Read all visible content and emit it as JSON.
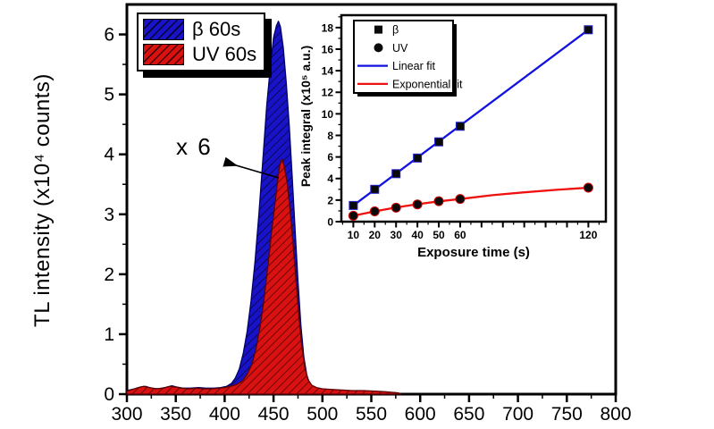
{
  "window": {
    "background": "#ffffff"
  },
  "colors": {
    "beta_fill": "#1812c8",
    "beta_hatch": "#05052e",
    "uv_fill": "#d91111",
    "uv_hatch": "#4a0404",
    "linear_fit": "#1212e0",
    "exponential_fit": "#ef1010",
    "axis": "#000000",
    "marker": "#0a0a0a"
  },
  "main_chart": {
    "ylabel": "TL intensity (x10⁴ counts)",
    "xlabel": "",
    "legend": {
      "items": [
        {
          "label": "β 60s",
          "swatch": "beta-hatch-swatch"
        },
        {
          "label": "UV 60s",
          "swatch": "uv-hatch-swatch"
        }
      ]
    },
    "annotation": {
      "text": "x 6"
    }
  },
  "inset_chart": {
    "xlabel": "Exposure time (s)",
    "ylabel": "Peak integral (x10⁵ a.u.)",
    "legend": {
      "items": [
        {
          "label": "β",
          "marker": "square"
        },
        {
          "label": "UV",
          "marker": "circle"
        },
        {
          "label": "Linear fit",
          "line": "linear_fit"
        },
        {
          "label": "Exponential fit",
          "line": "exponential_fit"
        }
      ]
    }
  },
  "chart_data": [
    {
      "type": "area",
      "title": "",
      "xlabel": "",
      "ylabel": "TL intensity (x10⁴ counts)",
      "xlim": [
        300,
        800
      ],
      "ylim": [
        0,
        6.5
      ],
      "x_ticks": [
        300,
        350,
        400,
        450,
        500,
        550,
        600,
        650,
        700,
        750,
        800
      ],
      "x_minor_step": 25,
      "y_ticks": [
        0,
        1,
        2,
        3,
        4,
        5,
        6
      ],
      "y_minor_step": 0.5,
      "grid": false,
      "legend_position": "top-left",
      "series": [
        {
          "name": "β 60s",
          "fill": "beta_fill",
          "peak_x": 455,
          "peak_y": 6.2,
          "points": [
            [
              300,
              0.06
            ],
            [
              308,
              0.09
            ],
            [
              314,
              0.12
            ],
            [
              319,
              0.13
            ],
            [
              325,
              0.1
            ],
            [
              332,
              0.09
            ],
            [
              339,
              0.11
            ],
            [
              346,
              0.14
            ],
            [
              351,
              0.12
            ],
            [
              357,
              0.1
            ],
            [
              365,
              0.1
            ],
            [
              373,
              0.11
            ],
            [
              381,
              0.1
            ],
            [
              389,
              0.1
            ],
            [
              396,
              0.11
            ],
            [
              402,
              0.13
            ],
            [
              407,
              0.18
            ],
            [
              411,
              0.27
            ],
            [
              415,
              0.42
            ],
            [
              419,
              0.68
            ],
            [
              423,
              1.05
            ],
            [
              427,
              1.55
            ],
            [
              431,
              2.2
            ],
            [
              435,
              3.0
            ],
            [
              439,
              3.9
            ],
            [
              443,
              4.8
            ],
            [
              447,
              5.5
            ],
            [
              450,
              5.95
            ],
            [
              453,
              6.15
            ],
            [
              455,
              6.22
            ],
            [
              457,
              6.13
            ],
            [
              460,
              5.78
            ],
            [
              463,
              5.2
            ],
            [
              466,
              4.5
            ],
            [
              469,
              3.65
            ],
            [
              472,
              2.75
            ],
            [
              475,
              1.9
            ],
            [
              478,
              1.15
            ],
            [
              481,
              0.62
            ],
            [
              484,
              0.32
            ],
            [
              487,
              0.17
            ],
            [
              491,
              0.1
            ],
            [
              496,
              0.07
            ],
            [
              503,
              0.06
            ],
            [
              514,
              0.05
            ],
            [
              528,
              0.05
            ],
            [
              543,
              0.04
            ],
            [
              557,
              0.04
            ],
            [
              568,
              0.03
            ],
            [
              576,
              0.02
            ],
            [
              580,
              0
            ]
          ]
        },
        {
          "name": "UV 60s",
          "fill": "uv_fill",
          "peak_x": 458,
          "peak_y": 3.9,
          "points": [
            [
              300,
              0.05
            ],
            [
              306,
              0.08
            ],
            [
              312,
              0.11
            ],
            [
              317,
              0.13
            ],
            [
              323,
              0.11
            ],
            [
              330,
              0.09
            ],
            [
              337,
              0.1
            ],
            [
              344,
              0.13
            ],
            [
              350,
              0.12
            ],
            [
              356,
              0.1
            ],
            [
              363,
              0.09
            ],
            [
              371,
              0.1
            ],
            [
              379,
              0.09
            ],
            [
              387,
              0.09
            ],
            [
              394,
              0.1
            ],
            [
              400,
              0.11
            ],
            [
              406,
              0.13
            ],
            [
              412,
              0.16
            ],
            [
              418,
              0.22
            ],
            [
              423,
              0.33
            ],
            [
              428,
              0.5
            ],
            [
              432,
              0.75
            ],
            [
              436,
              1.1
            ],
            [
              440,
              1.55
            ],
            [
              444,
              2.1
            ],
            [
              448,
              2.7
            ],
            [
              452,
              3.25
            ],
            [
              455,
              3.68
            ],
            [
              457,
              3.87
            ],
            [
              459,
              3.92
            ],
            [
              461,
              3.8
            ],
            [
              464,
              3.52
            ],
            [
              467,
              3.05
            ],
            [
              470,
              2.5
            ],
            [
              473,
              1.9
            ],
            [
              476,
              1.3
            ],
            [
              479,
              0.8
            ],
            [
              482,
              0.45
            ],
            [
              485,
              0.25
            ],
            [
              489,
              0.15
            ],
            [
              494,
              0.11
            ],
            [
              500,
              0.09
            ],
            [
              508,
              0.08
            ],
            [
              518,
              0.07
            ],
            [
              530,
              0.06
            ],
            [
              542,
              0.06
            ],
            [
              554,
              0.05
            ],
            [
              564,
              0.04
            ],
            [
              572,
              0.03
            ],
            [
              578,
              0.02
            ],
            [
              580,
              0
            ]
          ]
        }
      ],
      "annotation": {
        "text": "x 6",
        "points_to_series": "UV 60s"
      }
    },
    {
      "type": "line",
      "title": "",
      "xlabel": "Exposure time (s)",
      "ylabel": "Peak integral (x10⁵ a.u.)",
      "xlim": [
        4.4,
        128.2
      ],
      "ylim": [
        0,
        19.15
      ],
      "x_ticks": [
        10,
        20,
        30,
        40,
        50,
        60,
        70,
        80,
        90,
        100,
        110,
        120
      ],
      "x_tick_labels": [
        "10",
        "20",
        "30",
        "40",
        "50",
        "60",
        "",
        "",
        "",
        "",
        "",
        "120"
      ],
      "x_minor_step": 5,
      "y_ticks": [
        0,
        2,
        4,
        6,
        8,
        10,
        12,
        14,
        16,
        18
      ],
      "y_minor_step": 1,
      "grid": false,
      "legend_position": "top-left",
      "series": [
        {
          "name": "β",
          "marker": "square",
          "x": [
            10,
            20,
            30,
            40,
            50,
            60,
            120
          ],
          "y": [
            1.5,
            3.0,
            4.45,
            5.9,
            7.4,
            8.85,
            17.8
          ]
        },
        {
          "name": "UV",
          "marker": "circle",
          "x": [
            10,
            20,
            30,
            40,
            50,
            60,
            120
          ],
          "y": [
            0.55,
            0.95,
            1.3,
            1.6,
            1.9,
            2.1,
            3.15
          ]
        }
      ],
      "fits": [
        {
          "name": "Linear fit",
          "color": "linear_fit",
          "points": [
            [
              10,
              1.5
            ],
            [
              120,
              17.8
            ]
          ]
        },
        {
          "name": "Exponential fit",
          "color": "exponential_fit",
          "points": [
            [
              10,
              0.55
            ],
            [
              20,
              0.95
            ],
            [
              30,
              1.32
            ],
            [
              40,
              1.62
            ],
            [
              50,
              1.88
            ],
            [
              60,
              2.1
            ],
            [
              75,
              2.45
            ],
            [
              90,
              2.72
            ],
            [
              105,
              2.95
            ],
            [
              120,
              3.15
            ]
          ]
        }
      ]
    }
  ]
}
